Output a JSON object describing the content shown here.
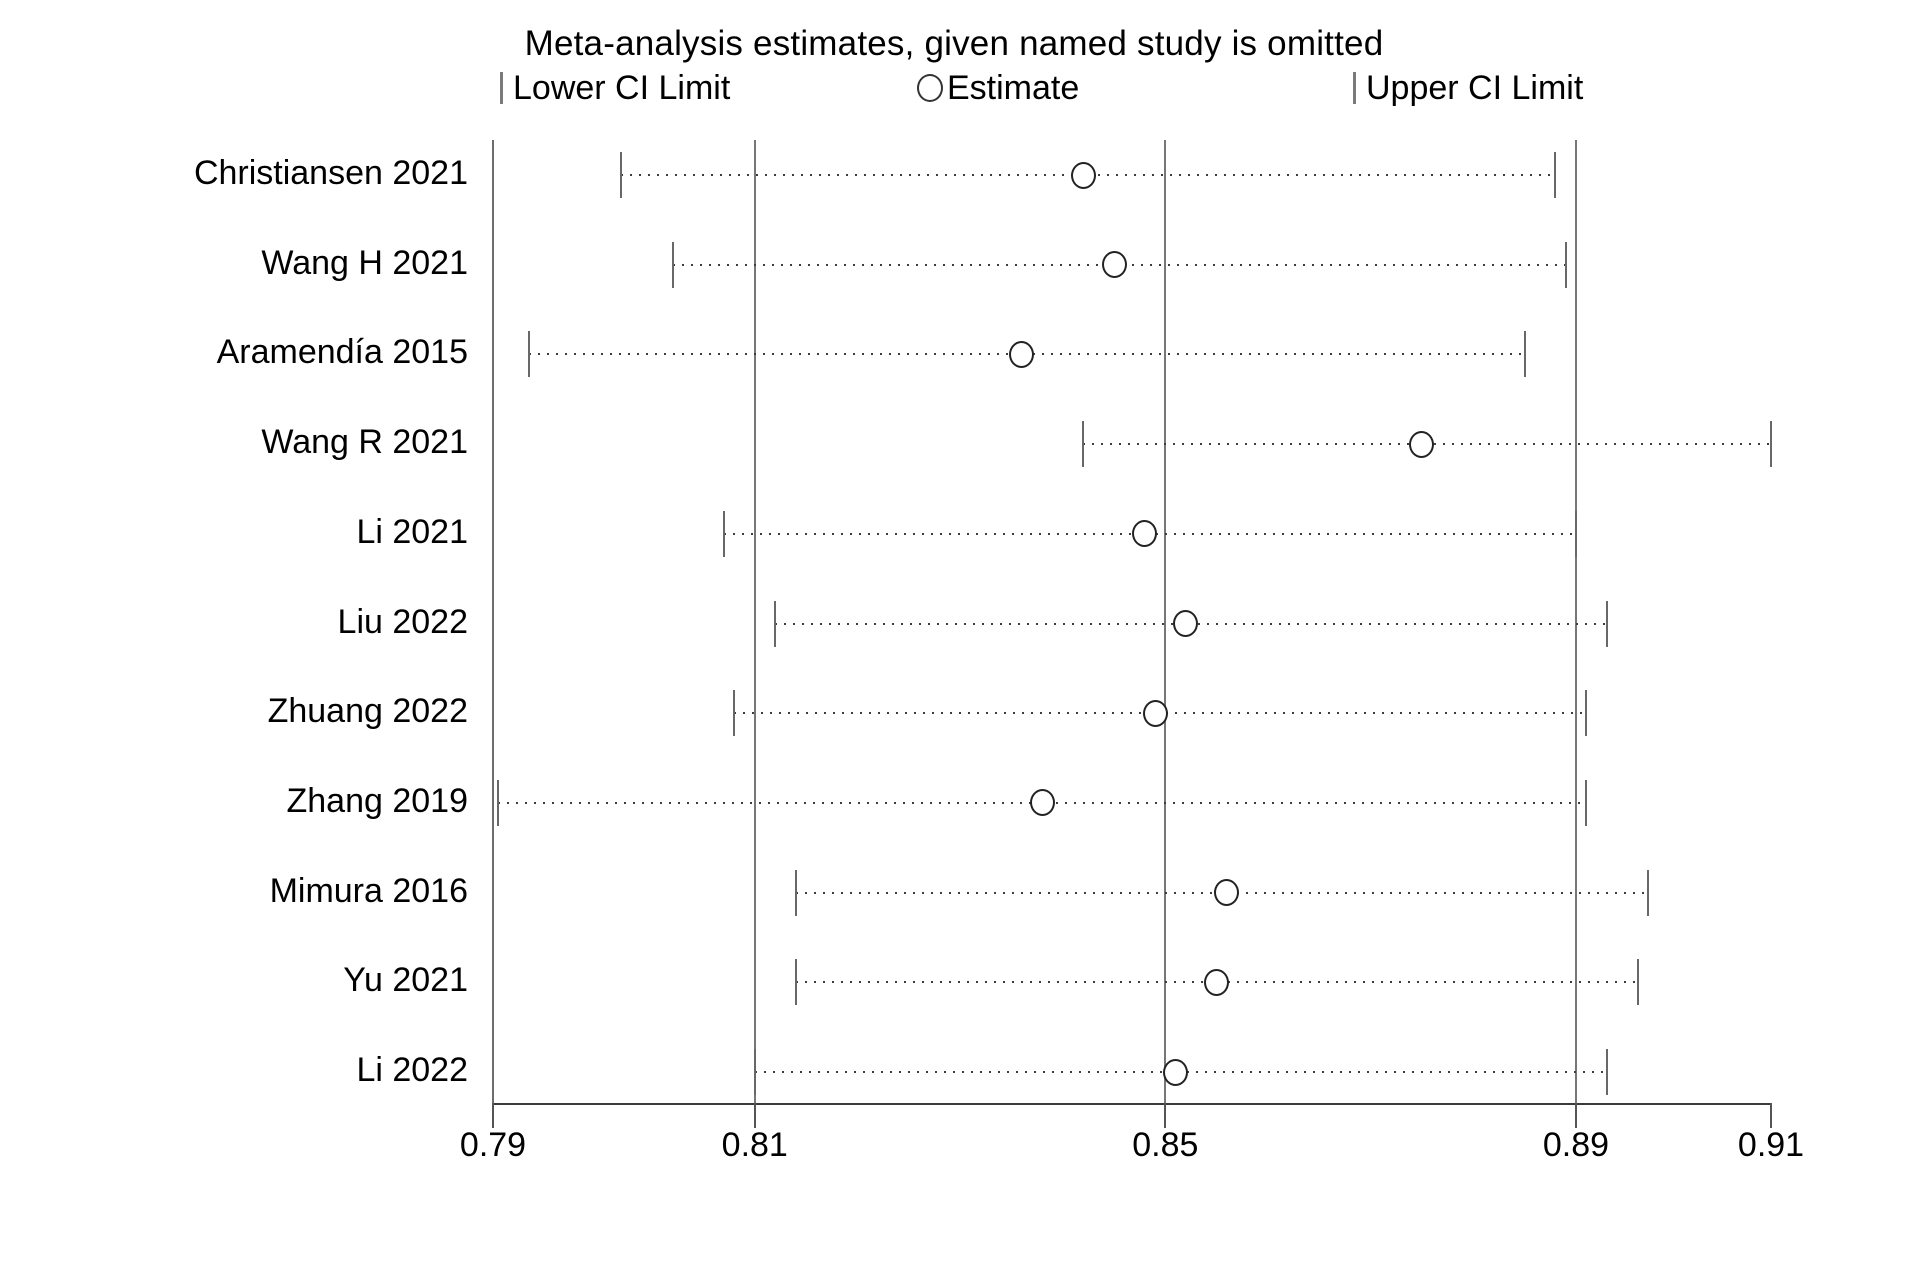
{
  "figure": {
    "title": "Meta-analysis estimates, given named study is omitted"
  },
  "legend": {
    "items": [
      {
        "icon": "ci-tick",
        "label": "Lower CI Limit"
      },
      {
        "icon": "estimate-circle",
        "label": "Estimate"
      },
      {
        "icon": "ci-tick",
        "label": "Upper CI Limit"
      }
    ]
  },
  "chart_data": {
    "type": "scatter",
    "subtype": "leave-one-out meta-analysis forest plot",
    "title": "Meta-analysis estimates, given named study is omitted",
    "categories": [
      "Christiansen 2021",
      "Wang H 2021",
      "Aramendía 2015",
      "Wang R 2021",
      "Li 2021",
      "Liu 2022",
      "Zhuang 2022",
      "Zhang 2019",
      "Mimura 2016",
      "Yu 2021",
      "Li 2022"
    ],
    "series": [
      {
        "name": "Lower CI Limit",
        "marker": "vertical-tick",
        "values": [
          0.797,
          0.802,
          0.788,
          0.842,
          0.807,
          0.812,
          0.808,
          0.785,
          0.814,
          0.814,
          0.81
        ]
      },
      {
        "name": "Estimate",
        "marker": "open-circle",
        "values": [
          0.842,
          0.845,
          0.836,
          0.875,
          0.848,
          0.852,
          0.849,
          0.838,
          0.856,
          0.855,
          0.851
        ]
      },
      {
        "name": "Upper CI Limit",
        "marker": "vertical-tick",
        "values": [
          0.888,
          0.889,
          0.885,
          0.909,
          0.89,
          0.893,
          0.891,
          0.891,
          0.897,
          0.896,
          0.893
        ]
      }
    ],
    "xlim": [
      0.7845,
      0.909
    ],
    "xticks": [
      {
        "label": "0.79",
        "value": 0.7845
      },
      {
        "label": "0.81",
        "value": 0.81
      },
      {
        "label": "0.85",
        "value": 0.85
      },
      {
        "label": "0.89",
        "value": 0.89
      },
      {
        "label": "0.91",
        "value": 0.909
      }
    ],
    "gridline_values": [
      0.81,
      0.85,
      0.89
    ],
    "legend_position": "top",
    "grid": "vertical-reference-lines",
    "connector": "dotted-line"
  },
  "colors": {
    "background": "#ffffff",
    "text": "#000000",
    "gridline": "#777777",
    "axis": "#3a3a3a",
    "ci_tick": "#686868",
    "dotted_line": "#3d3d3d",
    "marker_stroke": "#222222"
  }
}
